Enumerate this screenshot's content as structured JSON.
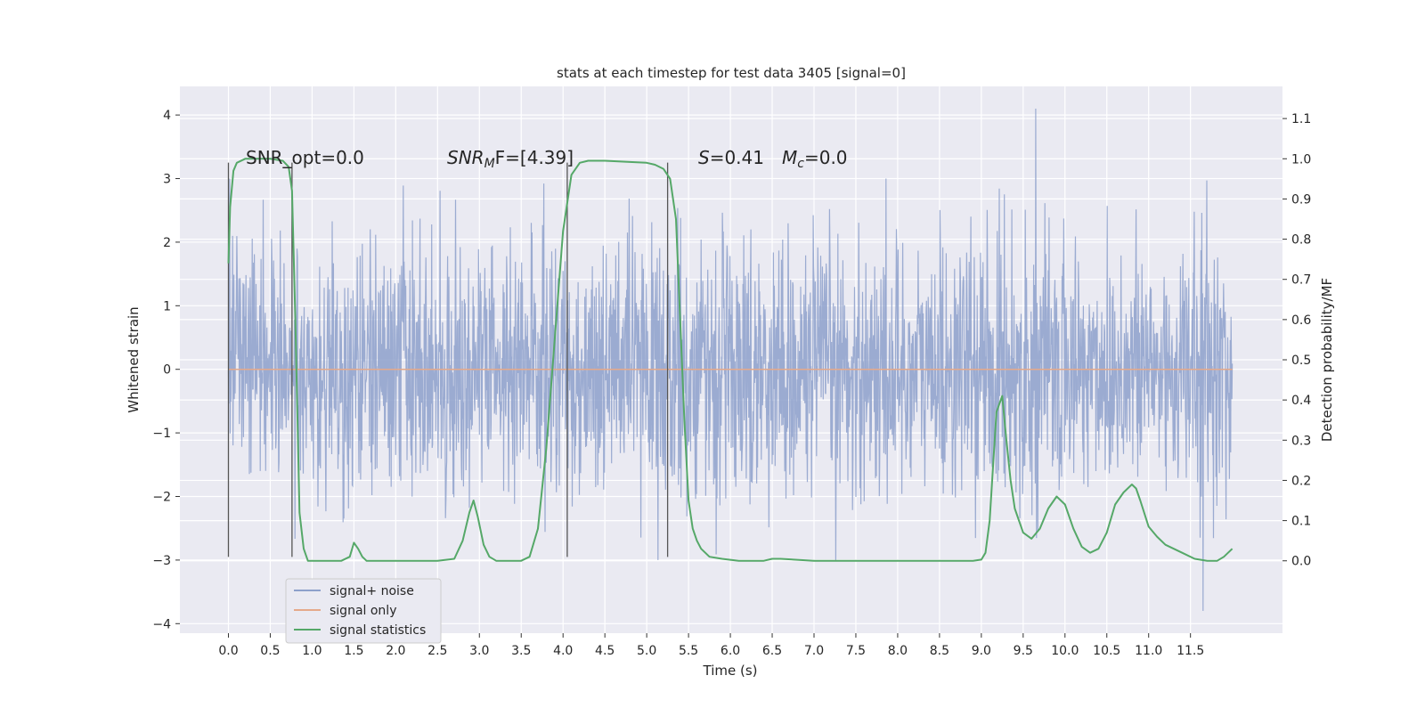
{
  "chart_data": {
    "type": "line",
    "title": "stats at each timestep for test data 3405 [signal=0]",
    "xlabel": "Time (s)",
    "ylabel_left": "Whitened strain",
    "ylabel_right": "Detection probability/MF",
    "xlim": [
      -0.58,
      12.6
    ],
    "ylim_left": [
      -4.15,
      4.45
    ],
    "ylim_right": [
      -0.18,
      1.18
    ],
    "x_ticks": [
      0.0,
      0.5,
      1.0,
      1.5,
      2.0,
      2.5,
      3.0,
      3.5,
      4.0,
      4.5,
      5.0,
      5.5,
      6.0,
      6.5,
      7.0,
      7.5,
      8.0,
      8.5,
      9.0,
      9.5,
      10.0,
      10.5,
      11.0,
      11.5
    ],
    "x_tick_labels": [
      "0.0",
      "0.5",
      "1.0",
      "1.5",
      "2.0",
      "2.5",
      "3.0",
      "3.5",
      "4.0",
      "4.5",
      "5.0",
      "5.5",
      "6.0",
      "6.5",
      "7.0",
      "7.5",
      "8.0",
      "8.5",
      "9.0",
      "9.5",
      "10.0",
      "10.5",
      "11.0",
      "11.5"
    ],
    "y_left_ticks": [
      -4,
      -3,
      -2,
      -1,
      0,
      1,
      2,
      3,
      4
    ],
    "y_left_tick_labels": [
      "−4",
      "−3",
      "−2",
      "−1",
      "0",
      "1",
      "2",
      "3",
      "4"
    ],
    "y_right_ticks": [
      0.0,
      0.1,
      0.2,
      0.3,
      0.4,
      0.5,
      0.6,
      0.7,
      0.8,
      0.9,
      1.0,
      1.1
    ],
    "y_right_tick_labels": [
      "0.0",
      "0.1",
      "0.2",
      "0.3",
      "0.4",
      "0.5",
      "0.6",
      "0.7",
      "0.8",
      "0.9",
      "1.0",
      "1.1"
    ],
    "grid": true,
    "legend_position": "lower-left",
    "series": [
      {
        "name": "signal+ noise",
        "axis": "left",
        "color": "#8da0cb",
        "style": "dense noise trace, t = 0.0 to 12.0 s, typical envelope about ±2.3, extremes +4.1 at 9.65 s and −3.8 at 11.65 s",
        "x_range": [
          0.0,
          12.0
        ]
      },
      {
        "name": "signal only",
        "axis": "left",
        "color": "#e5a98a",
        "x": [
          0.0,
          12.0
        ],
        "values": [
          0.0,
          0.0
        ]
      },
      {
        "name": "signal statistics",
        "axis": "right",
        "color": "#55a868",
        "x": [
          0.0,
          0.02,
          0.06,
          0.1,
          0.2,
          0.3,
          0.5,
          0.65,
          0.72,
          0.76,
          0.8,
          0.85,
          0.9,
          0.95,
          1.05,
          1.2,
          1.35,
          1.45,
          1.5,
          1.55,
          1.6,
          1.65,
          1.8,
          2.0,
          2.2,
          2.5,
          2.7,
          2.8,
          2.88,
          2.93,
          2.98,
          3.05,
          3.12,
          3.2,
          3.35,
          3.5,
          3.6,
          3.7,
          3.8,
          3.9,
          4.0,
          4.1,
          4.2,
          4.3,
          4.5,
          4.8,
          5.0,
          5.1,
          5.2,
          5.28,
          5.35,
          5.4,
          5.45,
          5.5,
          5.55,
          5.6,
          5.65,
          5.75,
          5.9,
          6.1,
          6.4,
          6.5,
          6.6,
          7.0,
          7.5,
          8.0,
          8.5,
          8.9,
          9.0,
          9.05,
          9.1,
          9.18,
          9.25,
          9.3,
          9.35,
          9.4,
          9.5,
          9.6,
          9.7,
          9.8,
          9.9,
          10.0,
          10.1,
          10.2,
          10.3,
          10.4,
          10.5,
          10.6,
          10.7,
          10.8,
          10.85,
          10.9,
          11.0,
          11.1,
          11.2,
          11.4,
          11.55,
          11.7,
          11.82,
          11.9,
          12.0
        ],
        "values": [
          0.74,
          0.88,
          0.97,
          0.99,
          1.0,
          1.0,
          1.0,
          0.995,
          0.98,
          0.92,
          0.6,
          0.12,
          0.03,
          0.0,
          0.0,
          0.0,
          0.0,
          0.01,
          0.045,
          0.03,
          0.01,
          0.0,
          0.0,
          0.0,
          0.0,
          0.0,
          0.005,
          0.05,
          0.12,
          0.15,
          0.11,
          0.04,
          0.01,
          0.0,
          0.0,
          0.0,
          0.01,
          0.08,
          0.28,
          0.55,
          0.82,
          0.96,
          0.99,
          0.995,
          0.995,
          0.992,
          0.99,
          0.985,
          0.975,
          0.95,
          0.85,
          0.6,
          0.35,
          0.15,
          0.08,
          0.05,
          0.03,
          0.01,
          0.005,
          0.0,
          0.0,
          0.005,
          0.005,
          0.0,
          0.0,
          0.0,
          0.0,
          0.0,
          0.003,
          0.02,
          0.1,
          0.37,
          0.41,
          0.3,
          0.2,
          0.13,
          0.07,
          0.055,
          0.08,
          0.13,
          0.16,
          0.14,
          0.08,
          0.035,
          0.02,
          0.03,
          0.07,
          0.14,
          0.17,
          0.19,
          0.18,
          0.15,
          0.085,
          0.06,
          0.04,
          0.02,
          0.005,
          0.0,
          0.0,
          0.01,
          0.03
        ]
      }
    ],
    "vertical_markers": [
      0.0,
      0.76,
      4.05,
      5.25
    ],
    "vertical_marker_ylim_left": [
      -2.95,
      3.25
    ],
    "annotations": {
      "snr_opt": "SNR_opt=0.0",
      "snr_mf_main": "SNR",
      "snr_mf_sub": "M",
      "snr_mf_rest": "F=[4.39]",
      "s_label": "S",
      "s_value": "=0.41",
      "mc_main": "M",
      "mc_sub": "c",
      "mc_value": "=0.0"
    }
  }
}
